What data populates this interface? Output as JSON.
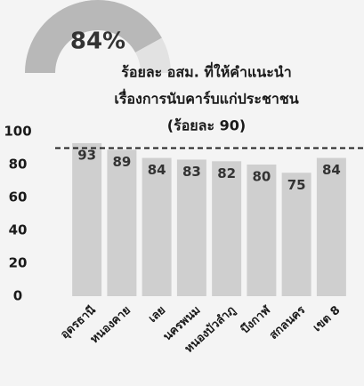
{
  "chart_data": {
    "type": "bar",
    "gauge": {
      "value": 84,
      "label": "84%",
      "range": [
        0,
        100
      ]
    },
    "title": [
      "ร้อยละ อสม. ที่ให้คำแนะนำ",
      "เรื่องการนับคาร์บแก่ประชาชน",
      "(ร้อยละ 90)"
    ],
    "target": 90,
    "categories": [
      "อุดรธานี",
      "หนองคาย",
      "เลย",
      "นครพนม",
      "หนองบัวลำภู",
      "บึงกาฬ",
      "สกลนคร",
      "เขต 8"
    ],
    "values": [
      93,
      89,
      84,
      83,
      82,
      80,
      75,
      84
    ],
    "color": "#cfcfcf",
    "ylim": [
      0,
      100
    ],
    "yticks": [
      0,
      20,
      40,
      60,
      80,
      100
    ]
  }
}
